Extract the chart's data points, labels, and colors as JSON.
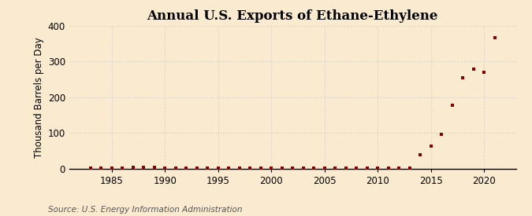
{
  "title": "Annual U.S. Exports of Ethane-Ethylene",
  "ylabel": "Thousand Barrels per Day",
  "source": "Source: U.S. Energy Information Administration",
  "background_color": "#faebd0",
  "marker_color": "#8b0000",
  "years": [
    1983,
    1984,
    1985,
    1986,
    1987,
    1988,
    1989,
    1990,
    1991,
    1992,
    1993,
    1994,
    1995,
    1996,
    1997,
    1998,
    1999,
    2000,
    2001,
    2002,
    2003,
    2004,
    2005,
    2006,
    2007,
    2008,
    2009,
    2010,
    2011,
    2012,
    2013,
    2014,
    2015,
    2016,
    2017,
    2018,
    2019,
    2020,
    2021
  ],
  "values": [
    1,
    1,
    2,
    2,
    3,
    3,
    3,
    2,
    2,
    2,
    2,
    2,
    2,
    2,
    1,
    1,
    1,
    1,
    1,
    1,
    1,
    1,
    1,
    1,
    1,
    1,
    1,
    1,
    1,
    1,
    1,
    38,
    63,
    96,
    177,
    255,
    278,
    270,
    367
  ],
  "xlim": [
    1981,
    2023
  ],
  "ylim": [
    0,
    400
  ],
  "xticks": [
    1985,
    1990,
    1995,
    2000,
    2005,
    2010,
    2015,
    2020
  ],
  "yticks": [
    0,
    100,
    200,
    300,
    400
  ],
  "grid_color": "#cccccc",
  "title_fontsize": 12,
  "label_fontsize": 8.5,
  "tick_fontsize": 8.5,
  "source_fontsize": 7.5
}
